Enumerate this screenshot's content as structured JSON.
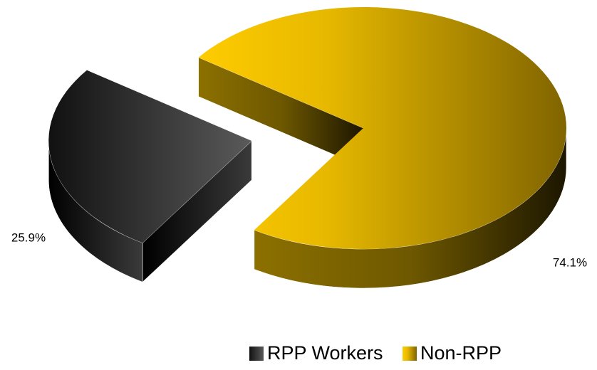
{
  "chart_data": {
    "type": "pie",
    "categories": [
      "RPP Workers",
      "Non-RPP"
    ],
    "values": [
      25.9,
      74.1
    ],
    "value_labels": [
      "25.9%",
      "74.1%"
    ],
    "colors": [
      "#333333",
      "#e8b800"
    ],
    "legend": "bottom"
  }
}
